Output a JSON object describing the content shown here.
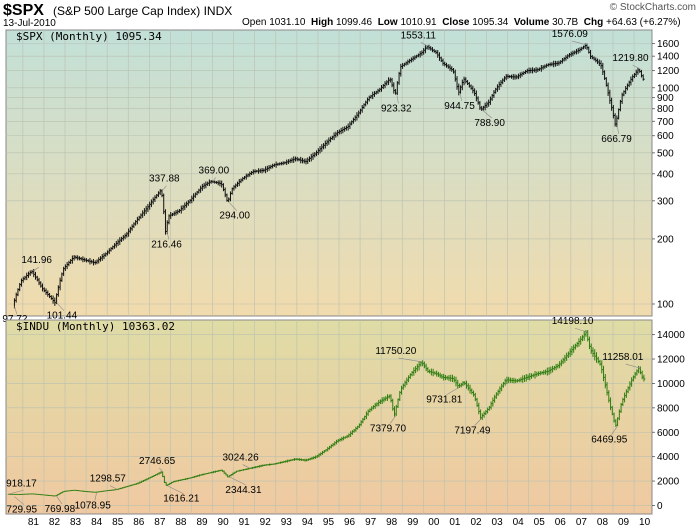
{
  "header": {
    "ticker": "$SPX",
    "name": "(S&P 500 Large Cap Index)",
    "exchange": "INDX",
    "date": "13-Jul-2010",
    "open_label": "Open",
    "open": "1031.10",
    "high_label": "High",
    "high": "1099.46",
    "low_label": "Low",
    "low": "1010.91",
    "close_label": "Close",
    "close": "1095.34",
    "volume_label": "Volume",
    "volume": "30.7B",
    "chg_label": "Chg",
    "chg": "+64.63 (+6.27%)",
    "brand": "© StockCharts.com"
  },
  "colors": {
    "spx_bars": "#111111",
    "indu_bars": "#2e7d10",
    "grid": "#b9c0b0",
    "spx_bg_top": "#c2e0d8",
    "spx_bg_bottom": "#f1dbad",
    "indu_bg_top": "#dfdca6",
    "indu_bg_bottom": "#f0c9a1"
  },
  "chart_data": [
    {
      "type": "line",
      "title": "$SPX (Monthly) 1095.34",
      "scale": "log",
      "ylim": [
        88,
        1850
      ],
      "x_tick_labels": [
        "81",
        "82",
        "83",
        "84",
        "85",
        "86",
        "87",
        "88",
        "89",
        "90",
        "91",
        "92",
        "93",
        "94",
        "95",
        "96",
        "97",
        "98",
        "99",
        "00",
        "01",
        "02",
        "03",
        "04",
        "05",
        "06",
        "07",
        "08",
        "09",
        "10"
      ],
      "y_tick_labels": [
        "1600",
        "1400",
        "1200",
        "1000",
        "900",
        "800",
        "700",
        "600",
        "500",
        "400",
        "300",
        "200",
        "100"
      ],
      "x": [
        1980.6,
        1981.0,
        1981.5,
        1982.0,
        1982.6,
        1983.0,
        1983.5,
        1984.0,
        1984.5,
        1985.0,
        1985.5,
        1986.0,
        1986.5,
        1987.0,
        1987.65,
        1987.85,
        1988.0,
        1988.5,
        1989.0,
        1989.6,
        1990.0,
        1990.5,
        1990.8,
        1991.0,
        1991.5,
        1992.0,
        1992.5,
        1993.0,
        1993.5,
        1994.0,
        1994.5,
        1995.0,
        1995.5,
        1996.0,
        1996.5,
        1997.0,
        1997.5,
        1998.0,
        1998.5,
        1998.75,
        1999.0,
        1999.5,
        2000.0,
        2000.25,
        2000.7,
        2001.0,
        2001.5,
        2001.75,
        2002.0,
        2002.5,
        2002.8,
        2003.2,
        2003.5,
        2004.0,
        2004.5,
        2005.0,
        2005.5,
        2006.0,
        2006.5,
        2007.0,
        2007.5,
        2007.8,
        2008.0,
        2008.5,
        2008.9,
        2009.2,
        2009.5,
        2010.0,
        2010.3,
        2010.5
      ],
      "y": [
        97.72,
        128,
        141.96,
        118,
        101.44,
        145,
        165,
        160,
        155,
        170,
        190,
        210,
        245,
        280,
        337.88,
        216.46,
        255,
        270,
        300,
        350,
        369,
        360,
        294,
        340,
        380,
        410,
        415,
        440,
        450,
        470,
        455,
        500,
        560,
        620,
        660,
        760,
        900,
        980,
        1100,
        923.32,
        1250,
        1350,
        1450,
        1553.11,
        1450,
        1300,
        1200,
        944.75,
        1100,
        950,
        788.9,
        860,
        980,
        1130,
        1120,
        1200,
        1210,
        1280,
        1300,
        1420,
        1500,
        1576.09,
        1400,
        1280,
        900,
        666.79,
        920,
        1120,
        1219.8,
        1095.34
      ],
      "annotations": [
        "97.72",
        "141.96",
        "101.44",
        "337.88",
        "216.46",
        "369.00",
        "294.00",
        "923.32",
        "1553.11",
        "944.75",
        "788.90",
        "1576.09",
        "666.79",
        "1219.80"
      ]
    },
    {
      "type": "line",
      "title": "$INDU (Monthly) 10363.02",
      "scale": "linear",
      "ylim": [
        -700,
        15200
      ],
      "x_tick_labels": [
        "81",
        "82",
        "83",
        "84",
        "85",
        "86",
        "87",
        "88",
        "89",
        "90",
        "91",
        "92",
        "93",
        "94",
        "95",
        "96",
        "97",
        "98",
        "99",
        "00",
        "01",
        "02",
        "03",
        "04",
        "05",
        "06",
        "07",
        "08",
        "09",
        "10"
      ],
      "y_tick_labels": [
        "14000",
        "12000",
        "10000",
        "8000",
        "6000",
        "4000",
        "2000",
        "0"
      ],
      "x": [
        1980.3,
        1980.9,
        1981.5,
        1982.0,
        1982.6,
        1983.0,
        1983.5,
        1984.0,
        1984.5,
        1985.0,
        1985.5,
        1986.0,
        1986.5,
        1987.0,
        1987.65,
        1987.85,
        1988.2,
        1988.6,
        1989.0,
        1989.5,
        1990.0,
        1990.5,
        1990.8,
        1991.2,
        1991.8,
        1992.5,
        1993.0,
        1993.5,
        1994.0,
        1994.5,
        1995.0,
        1995.5,
        1996.0,
        1996.5,
        1997.0,
        1997.5,
        1998.0,
        1998.5,
        1998.7,
        1999.0,
        1999.5,
        2000.0,
        2000.3,
        2000.7,
        2001.0,
        2001.5,
        2001.75,
        2002.0,
        2002.5,
        2002.8,
        2003.2,
        2003.5,
        2004.0,
        2004.5,
        2005.0,
        2005.5,
        2006.0,
        2006.5,
        2007.0,
        2007.5,
        2007.8,
        2008.0,
        2008.5,
        2008.9,
        2009.2,
        2009.5,
        2010.0,
        2010.3,
        2010.5
      ],
      "y": [
        918.17,
        900,
        950,
        870,
        769.98,
        1150,
        1250,
        1150,
        1078.95,
        1200,
        1298.57,
        1550,
        1800,
        2200,
        2746.65,
        1616.21,
        1950,
        2100,
        2250,
        2500,
        2700,
        2900,
        2344.31,
        2800,
        3024.26,
        3300,
        3400,
        3600,
        3800,
        3700,
        4000,
        4600,
        5300,
        5700,
        6500,
        7800,
        8500,
        9000,
        7379.7,
        9500,
        10800,
        11750.2,
        11000,
        10800,
        10500,
        10400,
        9731.81,
        10100,
        9000,
        7197.49,
        8000,
        9000,
        10300,
        10200,
        10500,
        10800,
        11000,
        11500,
        12500,
        13500,
        14198.1,
        12800,
        11500,
        8500,
        6469.95,
        8500,
        10400,
        11258.01,
        10363.02
      ],
      "annotations": [
        "918.17",
        "729.95",
        "769.98",
        "1298.57",
        "1078.95",
        "2746.65",
        "1616.21",
        "3024.26",
        "2344.31",
        "11750.20",
        "7379.70",
        "9731.81",
        "7197.49",
        "14198.10",
        "6469.95",
        "11258.01"
      ]
    }
  ]
}
